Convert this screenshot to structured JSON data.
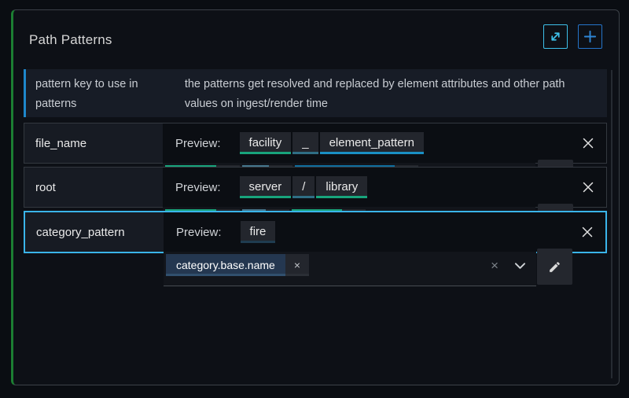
{
  "panel": {
    "title": "Path Patterns"
  },
  "info": {
    "key_label": "pattern key to use in patterns",
    "description": "the patterns get resolved and replaced by element attributes and other path values on ingest/render time"
  },
  "labels": {
    "preview": "Preview:"
  },
  "controls": {
    "tag_remove_icon": "×",
    "clear_icon": "×"
  },
  "icons": {
    "expand": "diagonal-resize-arrows",
    "add": "plus",
    "row_close": "x-cross",
    "dropdown": "chevron-down",
    "edit": "pencil"
  },
  "colors": {
    "accent_green": "#1c7e32",
    "accent_blue": "#1e87cb",
    "row_highlight": "#3ab4e9",
    "expand_border": "#3ec1ea",
    "add_border": "#2574c9",
    "chip_green": "#18a47c",
    "chip_slate": "#45768c",
    "chip_blue": "#0f6e9e",
    "chip_navy": "#243750"
  },
  "rows": [
    {
      "key": "file_name",
      "selected": false,
      "tall": true,
      "preview": [
        {
          "text": "facility",
          "color": "green"
        },
        {
          "text": "_",
          "color": "slate"
        },
        {
          "text": "element_pattern",
          "color": "blue"
        }
      ],
      "tags": [
        {
          "text": "facility",
          "color": "green"
        },
        {
          "text": "_",
          "color": "slate"
        },
        {
          "text": "element_pattern",
          "color": "blue"
        }
      ]
    },
    {
      "key": "root",
      "selected": false,
      "tall": false,
      "preview": [
        {
          "text": "server",
          "color": "green"
        },
        {
          "text": "/",
          "color": "slate"
        },
        {
          "text": "library",
          "color": "green"
        }
      ],
      "tags": [
        {
          "text": "server",
          "color": "green"
        },
        {
          "text": "/",
          "color": "slate"
        },
        {
          "text": "library",
          "color": "green"
        }
      ]
    },
    {
      "key": "category_pattern",
      "selected": true,
      "tall": false,
      "preview": [
        {
          "text": "fire",
          "color": "plain"
        }
      ],
      "tags": [
        {
          "text": "category.base.name",
          "color": "navy"
        }
      ]
    }
  ]
}
